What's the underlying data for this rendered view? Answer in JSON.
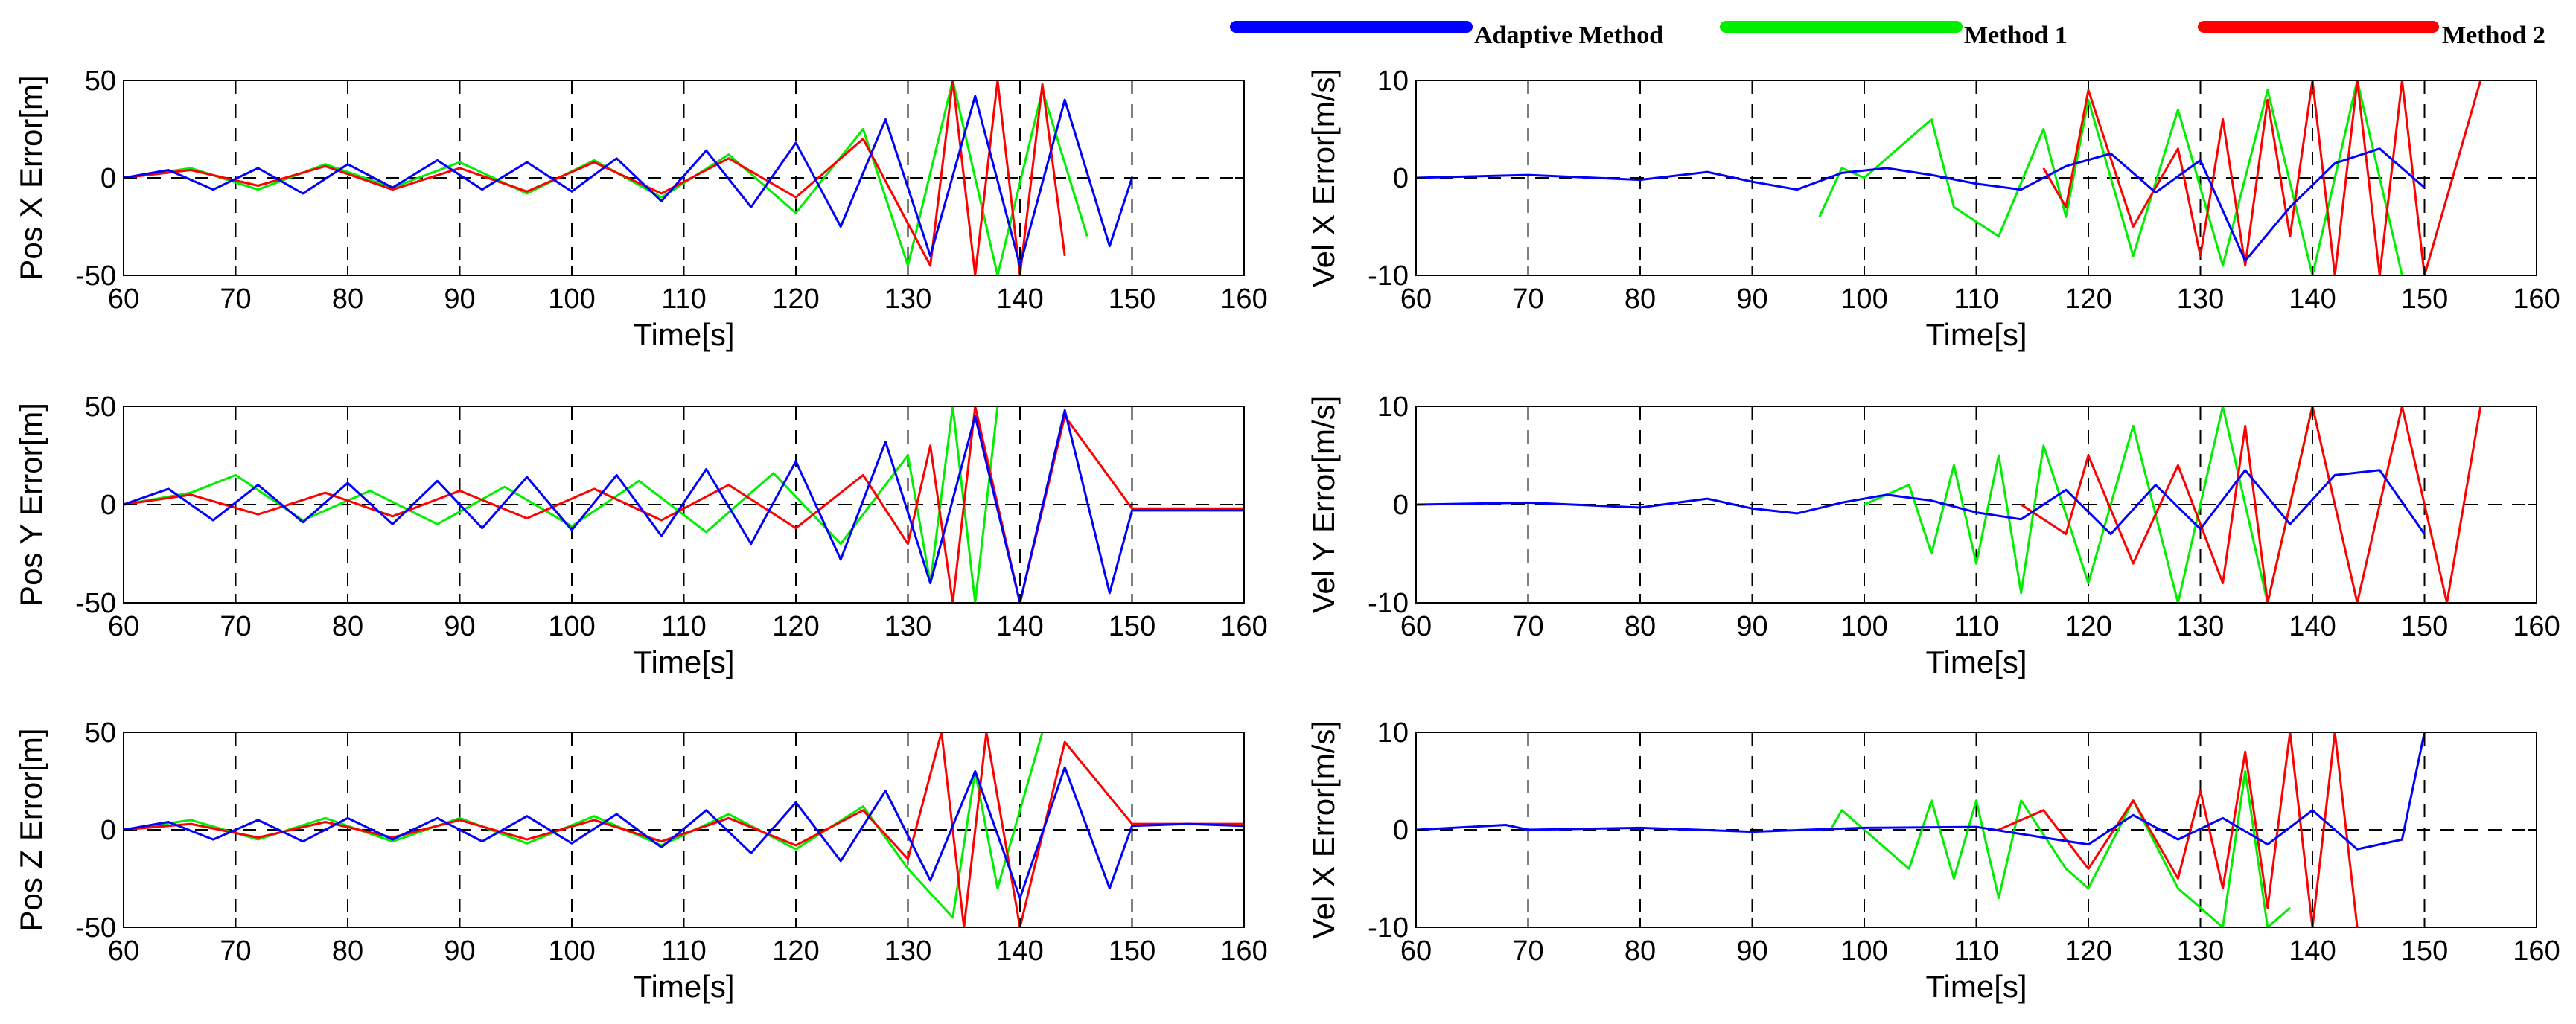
{
  "legend": [
    {
      "name": "Adaptive Method",
      "color": "#0000ff"
    },
    {
      "name": "Method 1",
      "color": "#00ee00"
    },
    {
      "name": "Method 2",
      "color": "#ff0000"
    }
  ],
  "chart_data": [
    {
      "type": "line",
      "title": "",
      "xlabel": "Time[s]",
      "ylabel": "Pos X Error[m]",
      "xlim": [
        60,
        160
      ],
      "ylim": [
        -50,
        50
      ],
      "xticks": [
        "60",
        "70",
        "80",
        "90",
        "100",
        "110",
        "120",
        "130",
        "140",
        "150",
        "160"
      ],
      "yticks": [
        "50",
        "0",
        "-50"
      ],
      "grid_x": [
        70,
        80,
        90,
        100,
        110,
        120,
        130,
        140,
        150
      ],
      "zero_line": true,
      "series": [
        {
          "name": "Adaptive Method",
          "color": "#0000ff",
          "x": [
            60,
            64,
            68,
            72,
            76,
            80,
            84,
            88,
            92,
            96,
            100,
            104,
            108,
            112,
            116,
            120,
            124,
            128,
            132,
            136,
            140,
            144,
            148,
            150
          ],
          "y": [
            0,
            4,
            -6,
            5,
            -8,
            7,
            -5,
            9,
            -6,
            8,
            -7,
            10,
            -12,
            14,
            -15,
            18,
            -25,
            30,
            -40,
            42,
            -45,
            40,
            -35,
            0
          ]
        },
        {
          "name": "Method 1",
          "color": "#00ee00",
          "x": [
            60,
            66,
            72,
            78,
            84,
            90,
            96,
            102,
            108,
            114,
            120,
            126,
            130,
            134,
            138,
            142,
            146
          ],
          "y": [
            0,
            5,
            -6,
            7,
            -5,
            8,
            -8,
            9,
            -10,
            12,
            -18,
            25,
            -45,
            50,
            -50,
            45,
            -30
          ]
        },
        {
          "name": "Method 2",
          "color": "#ff0000",
          "x": [
            60,
            66,
            72,
            78,
            84,
            90,
            96,
            102,
            108,
            114,
            120,
            126,
            132,
            134,
            136,
            138,
            140,
            142,
            144
          ],
          "y": [
            0,
            4,
            -4,
            6,
            -6,
            5,
            -7,
            8,
            -8,
            10,
            -10,
            20,
            -45,
            50,
            -50,
            50,
            -50,
            48,
            -40
          ]
        }
      ]
    },
    {
      "type": "line",
      "title": "",
      "xlabel": "Time[s]",
      "ylabel": "Vel X Error[m/s]",
      "xlim": [
        60,
        160
      ],
      "ylim": [
        -10,
        10
      ],
      "xticks": [
        "60",
        "70",
        "80",
        "90",
        "100",
        "110",
        "120",
        "130",
        "140",
        "150",
        "160"
      ],
      "yticks": [
        "10",
        "0",
        "-10"
      ],
      "grid_x": [
        70,
        80,
        90,
        100,
        110,
        120,
        130,
        140,
        150
      ],
      "zero_line": true,
      "series": [
        {
          "name": "Adaptive Method",
          "color": "#0000ff",
          "x": [
            60,
            70,
            80,
            86,
            90,
            94,
            98,
            102,
            106,
            110,
            114,
            118,
            122,
            126,
            130,
            134,
            138,
            142,
            146,
            150
          ],
          "y": [
            0,
            0.3,
            -0.2,
            0.6,
            -0.4,
            -1.2,
            0.5,
            1.0,
            0.3,
            -0.6,
            -1.2,
            1.2,
            2.5,
            -1.5,
            1.8,
            -8.5,
            -3,
            1.5,
            3,
            -1
          ]
        },
        {
          "name": "Method 1",
          "color": "#00ee00",
          "x": [
            96,
            98,
            100,
            104,
            106,
            108,
            112,
            116,
            118,
            120,
            124,
            128,
            132,
            136,
            140,
            144,
            148
          ],
          "y": [
            -4,
            1,
            0,
            4,
            6,
            -3,
            -6,
            5,
            -4,
            8,
            -8,
            7,
            -9,
            9,
            -10,
            10,
            -10
          ]
        },
        {
          "name": "Method 2",
          "color": "#ff0000",
          "x": [
            116,
            118,
            120,
            124,
            128,
            130,
            132,
            134,
            136,
            138,
            140,
            142,
            144,
            146,
            148,
            150,
            155
          ],
          "y": [
            1,
            -3,
            9,
            -5,
            3,
            -8,
            6,
            -9,
            8,
            -6,
            10,
            -10,
            10,
            -10,
            10,
            -10,
            10
          ]
        }
      ]
    },
    {
      "type": "line",
      "title": "",
      "xlabel": "Time[s]",
      "ylabel": "Pos Y Error[m]",
      "xlim": [
        60,
        160
      ],
      "ylim": [
        -50,
        50
      ],
      "xticks": [
        "60",
        "70",
        "80",
        "90",
        "100",
        "110",
        "120",
        "130",
        "140",
        "150",
        "160"
      ],
      "yticks": [
        "50",
        "0",
        "-50"
      ],
      "grid_x": [
        70,
        80,
        90,
        100,
        110,
        120,
        130,
        140,
        150
      ],
      "zero_line": true,
      "series": [
        {
          "name": "Adaptive Method",
          "color": "#0000ff",
          "x": [
            60,
            64,
            68,
            72,
            76,
            80,
            84,
            88,
            92,
            96,
            100,
            104,
            108,
            112,
            116,
            120,
            124,
            128,
            132,
            136,
            140,
            144,
            148,
            150,
            155,
            160
          ],
          "y": [
            0,
            8,
            -8,
            10,
            -9,
            11,
            -10,
            12,
            -12,
            14,
            -13,
            15,
            -16,
            18,
            -20,
            22,
            -28,
            32,
            -40,
            45,
            -50,
            48,
            -45,
            -3,
            -3,
            -3
          ]
        },
        {
          "name": "Method 1",
          "color": "#00ee00",
          "x": [
            60,
            66,
            70,
            76,
            82,
            88,
            94,
            100,
            106,
            112,
            118,
            124,
            130,
            132,
            134,
            136,
            138
          ],
          "y": [
            0,
            6,
            15,
            -8,
            7,
            -10,
            9,
            -11,
            12,
            -14,
            16,
            -20,
            25,
            -40,
            50,
            -50,
            50
          ]
        },
        {
          "name": "Method 2",
          "color": "#ff0000",
          "x": [
            60,
            66,
            72,
            78,
            84,
            90,
            96,
            102,
            108,
            114,
            120,
            126,
            130,
            132,
            134,
            136,
            140,
            144,
            150,
            160
          ],
          "y": [
            0,
            5,
            -5,
            6,
            -6,
            7,
            -7,
            8,
            -8,
            10,
            -12,
            15,
            -20,
            30,
            -50,
            50,
            -50,
            45,
            -2,
            -2
          ]
        }
      ]
    },
    {
      "type": "line",
      "title": "",
      "xlabel": "Time[s]",
      "ylabel": "Vel Y Error[m/s]",
      "xlim": [
        60,
        160
      ],
      "ylim": [
        -10,
        10
      ],
      "xticks": [
        "60",
        "70",
        "80",
        "90",
        "100",
        "110",
        "120",
        "130",
        "140",
        "150",
        "160"
      ],
      "yticks": [
        "10",
        "0",
        "-10"
      ],
      "grid_x": [
        70,
        80,
        90,
        100,
        110,
        120,
        130,
        140,
        150
      ],
      "zero_line": true,
      "series": [
        {
          "name": "Adaptive Method",
          "color": "#0000ff",
          "x": [
            60,
            70,
            80,
            86,
            90,
            94,
            98,
            102,
            106,
            110,
            114,
            118,
            122,
            126,
            130,
            134,
            138,
            142,
            146,
            150
          ],
          "y": [
            0,
            0.2,
            -0.3,
            0.6,
            -0.4,
            -0.9,
            0.2,
            1.0,
            0.4,
            -0.8,
            -1.5,
            1.5,
            -3,
            2,
            -2.5,
            3.5,
            -2,
            3,
            3.5,
            -3
          ]
        },
        {
          "name": "Method 1",
          "color": "#00ee00",
          "x": [
            100,
            104,
            106,
            108,
            110,
            112,
            114,
            116,
            120,
            124,
            128,
            132,
            136,
            140
          ],
          "y": [
            0,
            2,
            -5,
            4,
            -6,
            5,
            -9,
            6,
            -8,
            8,
            -10,
            10,
            -10,
            10
          ]
        },
        {
          "name": "Method 2",
          "color": "#ff0000",
          "x": [
            114,
            118,
            120,
            124,
            128,
            132,
            134,
            136,
            140,
            144,
            148,
            152,
            155
          ],
          "y": [
            0,
            -3,
            5,
            -6,
            4,
            -8,
            8,
            -10,
            10,
            -10,
            10,
            -10,
            10
          ]
        }
      ]
    },
    {
      "type": "line",
      "title": "",
      "xlabel": "Time[s]",
      "ylabel": "Pos Z Error[m]",
      "xlim": [
        60,
        160
      ],
      "ylim": [
        -50,
        50
      ],
      "xticks": [
        "60",
        "70",
        "80",
        "90",
        "100",
        "110",
        "120",
        "130",
        "140",
        "150",
        "160"
      ],
      "yticks": [
        "50",
        "0",
        "-50"
      ],
      "grid_x": [
        70,
        80,
        90,
        100,
        110,
        120,
        130,
        140,
        150
      ],
      "zero_line": true,
      "series": [
        {
          "name": "Adaptive Method",
          "color": "#0000ff",
          "x": [
            60,
            64,
            68,
            72,
            76,
            80,
            84,
            88,
            92,
            96,
            100,
            104,
            108,
            112,
            116,
            120,
            124,
            128,
            132,
            136,
            140,
            144,
            148,
            150,
            155,
            160
          ],
          "y": [
            0,
            4,
            -5,
            5,
            -6,
            6,
            -5,
            6,
            -6,
            7,
            -7,
            8,
            -9,
            10,
            -12,
            14,
            -16,
            20,
            -26,
            30,
            -35,
            32,
            -30,
            2,
            3,
            2
          ]
        },
        {
          "name": "Method 1",
          "color": "#00ee00",
          "x": [
            60,
            66,
            72,
            78,
            84,
            90,
            96,
            102,
            108,
            114,
            120,
            126,
            130,
            134,
            136,
            138,
            142
          ],
          "y": [
            0,
            5,
            -5,
            6,
            -6,
            6,
            -7,
            7,
            -8,
            8,
            -10,
            12,
            -20,
            -45,
            30,
            -30,
            50
          ]
        },
        {
          "name": "Method 2",
          "color": "#ff0000",
          "x": [
            60,
            66,
            72,
            78,
            84,
            90,
            96,
            102,
            108,
            114,
            120,
            126,
            130,
            133,
            135,
            137,
            140,
            144,
            150,
            160
          ],
          "y": [
            0,
            3,
            -4,
            4,
            -4,
            5,
            -5,
            5,
            -6,
            6,
            -8,
            10,
            -15,
            50,
            -50,
            50,
            -50,
            45,
            3,
            3
          ]
        }
      ]
    },
    {
      "type": "line",
      "title": "",
      "xlabel": "Time[s]",
      "ylabel": "Vel X Error[m/s]",
      "xlim": [
        60,
        160
      ],
      "ylim": [
        -10,
        10
      ],
      "xticks": [
        "60",
        "70",
        "80",
        "90",
        "100",
        "110",
        "120",
        "130",
        "140",
        "150",
        "160"
      ],
      "yticks": [
        "10",
        "0",
        "-10"
      ],
      "grid_x": [
        70,
        80,
        90,
        100,
        110,
        120,
        130,
        140,
        150
      ],
      "zero_line": true,
      "series": [
        {
          "name": "Adaptive Method",
          "color": "#0000ff",
          "x": [
            60,
            68,
            70,
            80,
            90,
            100,
            110,
            116,
            120,
            124,
            128,
            132,
            136,
            140,
            144,
            148,
            150
          ],
          "y": [
            0,
            0.5,
            0,
            0.2,
            -0.2,
            0.2,
            0.3,
            -0.8,
            -1.5,
            1.5,
            -1,
            1.2,
            -1.5,
            2,
            -2,
            -1,
            10
          ]
        },
        {
          "name": "Method 1",
          "color": "#00ee00",
          "x": [
            97,
            98,
            104,
            106,
            108,
            110,
            112,
            114,
            118,
            120,
            124,
            128,
            132,
            134,
            136,
            138
          ],
          "y": [
            0,
            2,
            -4,
            3,
            -5,
            3,
            -7,
            3,
            -4,
            -6,
            3,
            -6,
            -10,
            6,
            -10,
            -8
          ]
        },
        {
          "name": "Method 2",
          "color": "#ff0000",
          "x": [
            112,
            116,
            120,
            124,
            128,
            130,
            132,
            134,
            136,
            138,
            140,
            142,
            144
          ],
          "y": [
            0,
            2,
            -4,
            3,
            -5,
            4,
            -6,
            8,
            -8,
            10,
            -10,
            10,
            -10
          ]
        }
      ]
    }
  ]
}
